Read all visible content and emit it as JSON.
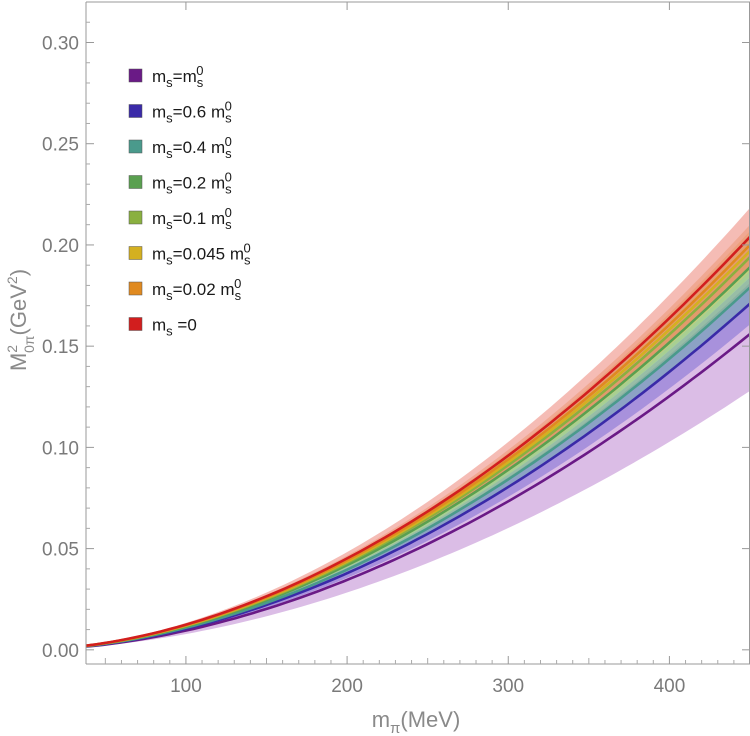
{
  "chart_data": {
    "type": "line",
    "title": "",
    "xlabel": {
      "base": "m",
      "sub": "π",
      "rest": "(MeV)"
    },
    "ylabel": {
      "base": "M",
      "sup": "2",
      "sub": "0π",
      "rest": "(GeV",
      "rest_sup": "2",
      "rest_end": ")"
    },
    "xlim": [
      38,
      450
    ],
    "ylim": [
      -0.007,
      0.32
    ],
    "x_ticks": [
      {
        "value": 100,
        "label": "100"
      },
      {
        "value": 200,
        "label": "200"
      },
      {
        "value": 300,
        "label": "300"
      },
      {
        "value": 400,
        "label": "400"
      }
    ],
    "y_ticks": [
      {
        "value": 0.0,
        "label": "0.00"
      },
      {
        "value": 0.05,
        "label": "0.05"
      },
      {
        "value": 0.1,
        "label": "0.10"
      },
      {
        "value": 0.15,
        "label": "0.15"
      },
      {
        "value": 0.2,
        "label": "0.20"
      },
      {
        "value": 0.25,
        "label": "0.25"
      },
      {
        "value": 0.3,
        "label": "0.30"
      }
    ],
    "model": "y = a * x^p (x in MeV, y in GeV^2); bands are +/- relative uncertainty",
    "exponent": 1.86,
    "legend_position": "top-left",
    "series": [
      {
        "name": "ms=ms0",
        "legend": {
          "main": "m",
          "sub": "s",
          "mid": "=m",
          "sub2": "s",
          "sup2": "0",
          "tail": ""
        },
        "color": "#6a1a86",
        "band_color": "#b06cc8",
        "value_at_450": 0.156,
        "band_rel": 0.18
      },
      {
        "name": "ms=0.6 ms0",
        "legend": {
          "main": "m",
          "sub": "s",
          "mid": "=0.6 m",
          "sub2": "s",
          "sup2": "0",
          "tail": ""
        },
        "color": "#3a2aa8",
        "band_color": "#6a5ad0",
        "value_at_450": 0.171,
        "band_rel": 0.06
      },
      {
        "name": "ms=0.4 ms0",
        "legend": {
          "main": "m",
          "sub": "s",
          "mid": "=0.4 m",
          "sub2": "s",
          "sup2": "0",
          "tail": ""
        },
        "color": "#4a9a8c",
        "band_color": "#6ab8a8",
        "value_at_450": 0.179,
        "band_rel": 0.05
      },
      {
        "name": "ms=0.2 ms0",
        "legend": {
          "main": "m",
          "sub": "s",
          "mid": "=0.2 m",
          "sub2": "s",
          "sup2": "0",
          "tail": ""
        },
        "color": "#5aa050",
        "band_color": "#86c07a",
        "value_at_450": 0.189,
        "band_rel": 0.05
      },
      {
        "name": "ms=0.1 ms0",
        "legend": {
          "main": "m",
          "sub": "s",
          "mid": "=0.1 m",
          "sub2": "s",
          "sup2": "0",
          "tail": ""
        },
        "color": "#8ab040",
        "band_color": "#b0cc70",
        "value_at_450": 0.194,
        "band_rel": 0.05
      },
      {
        "name": "ms=0.045 ms0",
        "legend": {
          "main": "m",
          "sub": "s",
          "mid": "=0.045 m",
          "sub2": "s",
          "sup2": "0",
          "tail": ""
        },
        "color": "#d4b020",
        "band_color": "#e4cc60",
        "value_at_450": 0.197,
        "band_rel": 0.05
      },
      {
        "name": "ms=0.02 ms0",
        "legend": {
          "main": "m",
          "sub": "s",
          "mid": "=0.02 m",
          "sub2": "s",
          "sup2": "0",
          "tail": ""
        },
        "color": "#e08a20",
        "band_color": "#ecae70",
        "value_at_450": 0.2,
        "band_rel": 0.05
      },
      {
        "name": "ms=0",
        "legend": {
          "main": "m",
          "sub": "s",
          "mid": " =0",
          "sub2": "",
          "sup2": "",
          "tail": ""
        },
        "color": "#d21e1e",
        "band_color": "#e86a5a",
        "value_at_450": 0.204,
        "band_rel": 0.07
      }
    ]
  }
}
